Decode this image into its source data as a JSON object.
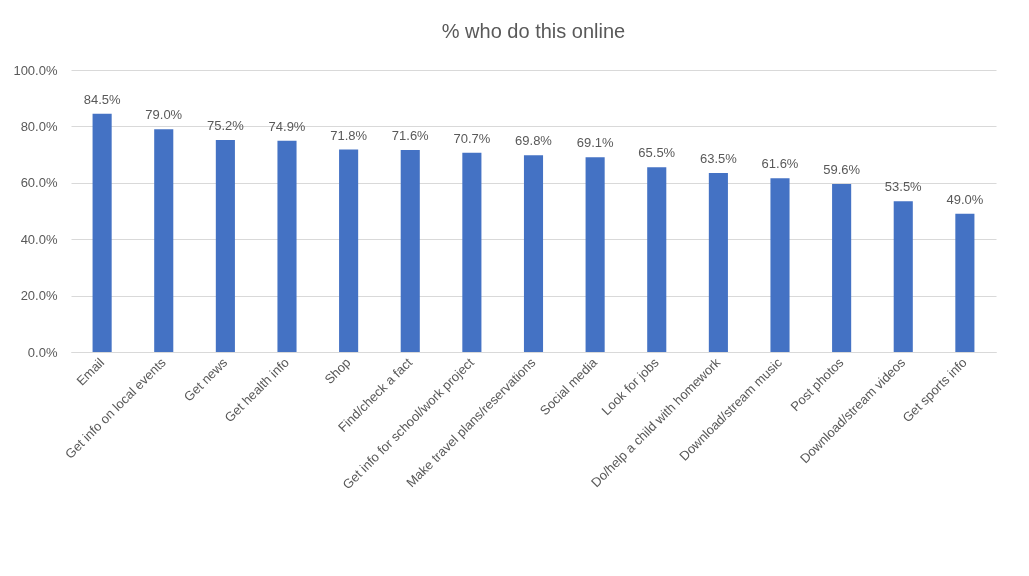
{
  "chart_data": {
    "type": "bar",
    "title": "% who do this online",
    "categories": [
      "Email",
      "Get info on local events",
      "Get news",
      "Get health info",
      "Shop",
      "Find/check a fact",
      "Get info for school/work project",
      "Make travel plans/reservations",
      "Social media",
      "Look for jobs",
      "Do/help a child with homework",
      "Download/stream music",
      "Post photos",
      "Download/stream videos",
      "Get sports info"
    ],
    "values": [
      84.5,
      79.0,
      75.2,
      74.9,
      71.8,
      71.6,
      70.7,
      69.8,
      69.1,
      65.5,
      63.5,
      61.6,
      59.6,
      53.5,
      49.0
    ],
    "value_labels": [
      "84.5%",
      "79.0%",
      "75.2%",
      "74.9%",
      "71.8%",
      "71.6%",
      "70.7%",
      "69.8%",
      "69.1%",
      "65.5%",
      "63.5%",
      "61.6%",
      "59.6%",
      "53.5%",
      "49.0%"
    ],
    "color": "#4472c4",
    "ylim": [
      0,
      100
    ],
    "yticks": [
      {
        "value": 0,
        "label": "0.0%"
      },
      {
        "value": 20,
        "label": "20.0%"
      },
      {
        "value": 40,
        "label": "40.0%"
      },
      {
        "value": 60,
        "label": "60.0%"
      },
      {
        "value": 80,
        "label": "80.0%"
      },
      {
        "value": 100,
        "label": "100.0%"
      }
    ],
    "grid": "y"
  }
}
